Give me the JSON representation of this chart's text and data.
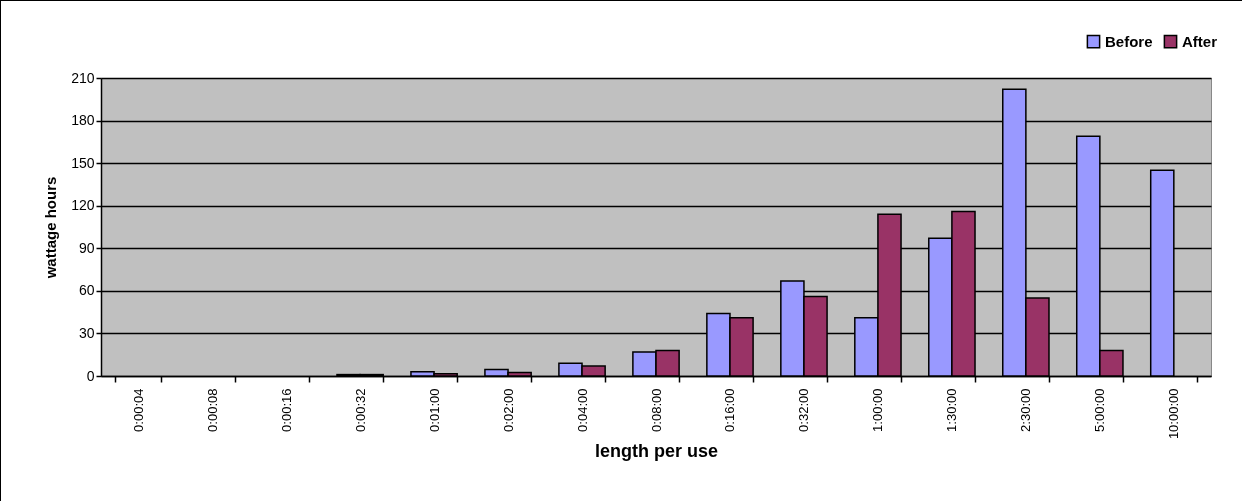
{
  "chart_data": {
    "type": "bar",
    "xlabel": "length per use",
    "ylabel": "wattage hours",
    "categories": [
      "0:00:04",
      "0:00:08",
      "0:00:16",
      "0:00:32",
      "0:01:00",
      "0:02:00",
      "0:04:00",
      "0:08:00",
      "0:16:00",
      "0:32:00",
      "1:00:00",
      "1:30:00",
      "2:30:00",
      "5:00:00",
      "10:00:00"
    ],
    "series": [
      {
        "name": "Before",
        "color": "#9999ff",
        "values": [
          null,
          null,
          null,
          1,
          3,
          4.5,
          9,
          17,
          44,
          67,
          41,
          97,
          202,
          169,
          145
        ]
      },
      {
        "name": "After",
        "color": "#993366",
        "values": [
          null,
          null,
          null,
          1,
          1.5,
          2.5,
          7,
          18,
          41,
          56,
          114,
          116,
          55,
          18,
          null
        ]
      }
    ],
    "ylim": [
      0,
      210
    ],
    "yticks": [
      0,
      30,
      60,
      90,
      120,
      150,
      180,
      210
    ],
    "grid": "y",
    "legend": "top right"
  }
}
